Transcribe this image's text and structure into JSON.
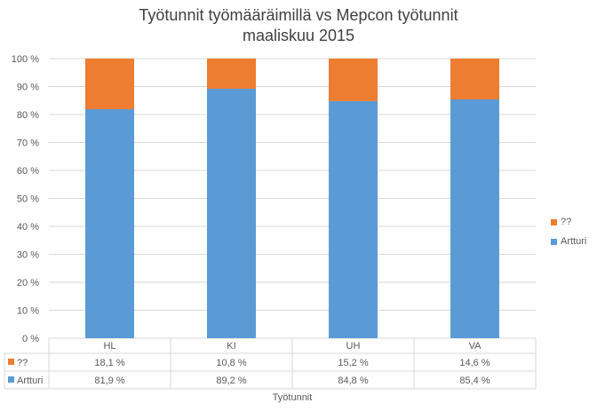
{
  "chart_data": {
    "type": "bar",
    "stacked": true,
    "percent": true,
    "title_line1": "Työtunnit työmääräimillä vs Mepcon työtunnit",
    "title_line2": "maaliskuu 2015",
    "xlabel": "Työtunnit",
    "ylabel": "",
    "categories": [
      "HL",
      "KI",
      "UH",
      "VA"
    ],
    "ylim": [
      0,
      100
    ],
    "yticks": [
      "0 %",
      "10 %",
      "20 %",
      "30 %",
      "40 %",
      "50 %",
      "60 %",
      "70 %",
      "80 %",
      "90 %",
      "100 %"
    ],
    "series": [
      {
        "name": "Artturi",
        "color": "#5B9BD5",
        "values": [
          81.9,
          89.2,
          84.8,
          85.4
        ],
        "labels": [
          "81,9 %",
          "89,2 %",
          "84,8 %",
          "85,4 %"
        ]
      },
      {
        "name": "??",
        "color": "#ED7D31",
        "values": [
          18.1,
          10.8,
          15.2,
          14.6
        ],
        "labels": [
          "18,1 %",
          "10,8 %",
          "15,2 %",
          "14,6 %"
        ]
      }
    ],
    "grid": true,
    "legend_position": "right",
    "data_table": true
  }
}
